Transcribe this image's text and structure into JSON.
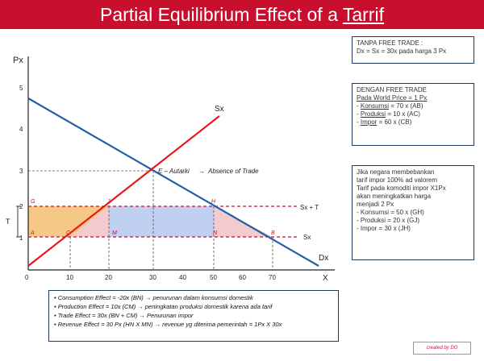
{
  "header": {
    "title_main": "Partial Equilibrium Effect of a ",
    "title_tail": "Tarrif",
    "color": "#c8102e"
  },
  "graph": {
    "y_label": "Px",
    "x_label": "X",
    "y_ticks": [
      "1",
      "2",
      "3",
      "4",
      "5"
    ],
    "x_ticks": [
      "0",
      "10",
      "20",
      "30",
      "40",
      "50",
      "60",
      "70"
    ],
    "supply_label": "Sx",
    "demand_label": "Dx",
    "sx_t_label": "Sx + T",
    "sx_label": "Sx",
    "t_label": "T",
    "autarky_label": "E – Autarki",
    "absence_label": "Absence of Trade",
    "points": {
      "E": "E",
      "G": "G",
      "J": "J",
      "H": "H",
      "A": "A",
      "C": "C",
      "M": "M",
      "N": "N",
      "B": "B"
    },
    "colors": {
      "supply": "#e8171f",
      "demand": "#1f5fa8",
      "tariff_line": "#c8102e",
      "orange_fill": "#f5c27a",
      "blue_fill": "#b9cbee",
      "pink_fill": "#f2c4c8"
    }
  },
  "box_autarky": {
    "title": "TANPA FREE TRADE :",
    "line1": "Dx = Sx = 30x pada harga 3 Px"
  },
  "box_free": {
    "title": "DENGAN FREE TRADE",
    "line1a": "Pada ",
    "line1b": "World Price = 1 Px",
    "line2a": "- ",
    "line2b": "Konsumsi",
    "line2c": " = 70 x (AB)",
    "line3a": "- ",
    "line3b": "Produksi",
    "line3c": " = 10 x (AC)",
    "line4a": "- ",
    "line4b": "Impor",
    "line4c": "       = 60 x (CB)"
  },
  "box_tariff": {
    "line1": "Jika negara membebankan",
    "line2": "tarif impor 100% ad valorem",
    "line3": "Tarif pada komoditi impor X1Px",
    "line4": "akan meningkatkan harga",
    "line5": "menjadi 2 Px",
    "line6": "- Konsumsi = 50 x (GH)",
    "line7": "- Produksi  = 20 x (GJ)",
    "line8": "- Impor       = 30 x (JH)"
  },
  "effects": {
    "line1": "• Consumption Effect  = -20x (BN) → penurunan dalam konsumsi domestik",
    "line2": "• Production Effect     = 10x  (CM) → peningkatan produksi domestik karena ada tarif",
    "line3": "• Trade Effect             = 30x   (BN + CM) → Penurunan impor",
    "line4": "• Revenue Effect         = 30 Px (HN X MN) → revenue yg diterima pemerintah = 1Px X 30x"
  },
  "credit": "created by DO"
}
